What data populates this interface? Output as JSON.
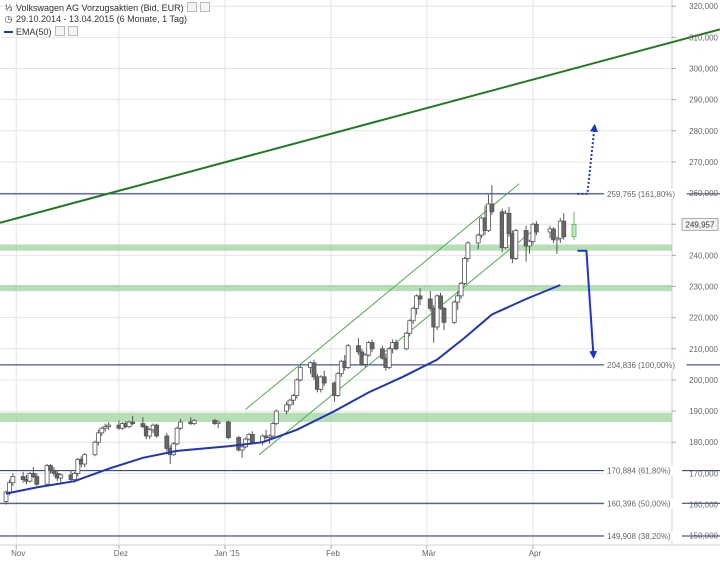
{
  "header": {
    "title": "Volkswagen AG Vorzugsaktien (Bid, EUR)",
    "range": "29.10.2014 - 13.04.2015 (6 Monate, 1 Tag)",
    "ema_label": "EMA(50)"
  },
  "colors": {
    "up": "#ffffff",
    "down": "#666666",
    "wick": "#555555",
    "ema": "#2233bb",
    "trend": "#1f7a1f",
    "channel": "#55aa55",
    "zone": "#9ed49e",
    "fib": "#1f2f7a",
    "arrow": "#2233cc",
    "grid": "#e4e4e4",
    "axis_text": "#666666"
  },
  "chart_data": {
    "type": "candlestick",
    "y_range": [
      147000,
      322000
    ],
    "x_range": [
      "2014-10-29",
      "2015-04-13"
    ],
    "y_ticks": [
      150000,
      160000,
      170000,
      180000,
      190000,
      200000,
      210000,
      220000,
      230000,
      240000,
      250000,
      260000,
      270000,
      280000,
      290000,
      300000,
      310000,
      320000
    ],
    "y_tick_labels": [
      "150,000",
      "160,000",
      "170,000",
      "180,000",
      "190,000",
      "200,000",
      "210,000",
      "220,000",
      "230,000",
      "240,000",
      "250,000",
      "260,000",
      "270,000",
      "280,000",
      "290,000",
      "300,000",
      "310,000",
      "320,000"
    ],
    "x_ticks": [
      {
        "date": "2014-11-01",
        "label": "Nov"
      },
      {
        "date": "2014-12-01",
        "label": "Dez"
      },
      {
        "date": "2015-01-01",
        "label": "Jan '15"
      },
      {
        "date": "2015-02-01",
        "label": "Feb"
      },
      {
        "date": "2015-03-01",
        "label": "Mär"
      },
      {
        "date": "2015-04-01",
        "label": "Apr"
      }
    ],
    "last_price_label": "249,957",
    "last_price": 249957,
    "fib_levels": [
      {
        "value": 259765,
        "label": "259,765 (161,80%)"
      },
      {
        "value": 204836,
        "label": "204,836 (100,00%)"
      },
      {
        "value": 170884,
        "label": "170,884 (61,80%)"
      },
      {
        "value": 160396,
        "label": "160,396 (50,00%)"
      },
      {
        "value": 149908,
        "label": "149,908 (38,20%)"
      }
    ],
    "zones": [
      {
        "from": 186500,
        "to": 189500
      },
      {
        "from": 228500,
        "to": 230500
      },
      {
        "from": 241500,
        "to": 243500
      }
    ],
    "trendline": {
      "from": {
        "date": "2014-10-29",
        "value": 251000
      },
      "to": {
        "date": "2015-04-13",
        "value": 300000
      }
    },
    "channel": [
      {
        "from": {
          "date": "2015-01-07",
          "value": 190500
        },
        "to": {
          "date": "2015-03-28",
          "value": 263000
        }
      },
      {
        "from": {
          "date": "2015-01-11",
          "value": 176000
        },
        "to": {
          "date": "2015-04-01",
          "value": 248000
        }
      }
    ],
    "ema": [
      {
        "date": "2014-10-29",
        "value": 163500
      },
      {
        "date": "2014-11-07",
        "value": 165500
      },
      {
        "date": "2014-11-18",
        "value": 167500
      },
      {
        "date": "2014-11-28",
        "value": 171500
      },
      {
        "date": "2014-12-08",
        "value": 175000
      },
      {
        "date": "2014-12-18",
        "value": 177200
      },
      {
        "date": "2015-01-02",
        "value": 178700
      },
      {
        "date": "2015-01-12",
        "value": 180000
      },
      {
        "date": "2015-01-22",
        "value": 184000
      },
      {
        "date": "2015-02-02",
        "value": 190000
      },
      {
        "date": "2015-02-12",
        "value": 196000
      },
      {
        "date": "2015-02-22",
        "value": 201000
      },
      {
        "date": "2015-03-04",
        "value": 206500
      },
      {
        "date": "2015-03-12",
        "value": 213500
      },
      {
        "date": "2015-03-20",
        "value": 221000
      },
      {
        "date": "2015-03-30",
        "value": 226000
      },
      {
        "date": "2015-04-09",
        "value": 230500
      }
    ],
    "candles": [
      [
        "2014-10-29",
        161000,
        164500,
        160000,
        164000
      ],
      [
        "2014-10-30",
        164000,
        168000,
        163000,
        167000
      ],
      [
        "2014-10-31",
        167000,
        170000,
        166000,
        169000
      ],
      [
        "2014-11-03",
        169000,
        170500,
        167000,
        168000
      ],
      [
        "2014-11-04",
        168000,
        169500,
        166500,
        167500
      ],
      [
        "2014-11-05",
        167500,
        170500,
        167000,
        170000
      ],
      [
        "2014-11-06",
        170000,
        172000,
        168500,
        169000
      ],
      [
        "2014-11-07",
        169000,
        170000,
        166000,
        166500
      ],
      [
        "2014-11-10",
        166500,
        173000,
        166000,
        172500
      ],
      [
        "2014-11-11",
        172500,
        173000,
        170000,
        171000
      ],
      [
        "2014-11-12",
        171000,
        172000,
        169000,
        170000
      ],
      [
        "2014-11-13",
        170000,
        171000,
        167500,
        168500
      ],
      [
        "2014-11-14",
        168500,
        170000,
        167000,
        169500
      ],
      [
        "2014-11-17",
        169500,
        171000,
        167500,
        168000
      ],
      [
        "2014-11-18",
        168000,
        170500,
        167000,
        170000
      ],
      [
        "2014-11-19",
        170000,
        175000,
        169000,
        174500
      ],
      [
        "2014-11-20",
        174500,
        175500,
        172000,
        173000
      ],
      [
        "2014-11-21",
        173000,
        176500,
        172000,
        176000
      ],
      [
        "2014-11-24",
        176000,
        180500,
        175500,
        180000
      ],
      [
        "2014-11-25",
        180000,
        184000,
        179000,
        183000
      ],
      [
        "2014-11-26",
        183000,
        185000,
        182000,
        184500
      ],
      [
        "2014-11-27",
        184500,
        186000,
        183500,
        185000
      ],
      [
        "2014-11-28",
        185000,
        186500,
        184000,
        185500
      ],
      [
        "2014-12-01",
        185500,
        187000,
        184000,
        184500
      ],
      [
        "2014-12-02",
        184500,
        186500,
        184000,
        186000
      ],
      [
        "2014-12-03",
        186000,
        186800,
        184500,
        185000
      ],
      [
        "2014-12-04",
        185000,
        187000,
        184500,
        186500
      ],
      [
        "2014-12-05",
        186500,
        188500,
        185500,
        186000
      ],
      [
        "2014-12-08",
        186000,
        188000,
        184500,
        185000
      ],
      [
        "2014-12-09",
        185000,
        185500,
        181000,
        182000
      ],
      [
        "2014-12-10",
        182000,
        184500,
        181000,
        184000
      ],
      [
        "2014-12-11",
        184000,
        186000,
        183000,
        185500
      ],
      [
        "2014-12-12",
        185500,
        186000,
        181500,
        182000
      ],
      [
        "2014-12-15",
        182000,
        183000,
        177000,
        178000
      ],
      [
        "2014-12-16",
        178000,
        179000,
        173000,
        176000
      ],
      [
        "2014-12-17",
        176000,
        180000,
        175500,
        179500
      ],
      [
        "2014-12-18",
        179500,
        185000,
        179000,
        184500
      ],
      [
        "2014-12-19",
        184500,
        187500,
        184000,
        186500
      ],
      [
        "2014-12-22",
        186500,
        188000,
        185500,
        186000
      ],
      [
        "2014-12-23",
        186000,
        187500,
        185500,
        187000
      ],
      [
        "2014-12-29",
        187000,
        187500,
        185500,
        186000
      ],
      [
        "2014-12-30",
        186000,
        187000,
        184500,
        186500
      ],
      [
        "2015-01-02",
        186500,
        187000,
        181000,
        181500
      ],
      [
        "2015-01-05",
        181500,
        182000,
        177000,
        177500
      ],
      [
        "2015-01-06",
        177500,
        179500,
        175000,
        178500
      ],
      [
        "2015-01-07",
        178500,
        181500,
        178000,
        181000
      ],
      [
        "2015-01-08",
        181000,
        183000,
        180500,
        182500
      ],
      [
        "2015-01-09",
        182500,
        183500,
        179500,
        180000
      ],
      [
        "2015-01-12",
        180000,
        182500,
        179000,
        182000
      ],
      [
        "2015-01-13",
        182000,
        184000,
        181000,
        181500
      ],
      [
        "2015-01-14",
        181500,
        182500,
        179500,
        182000
      ],
      [
        "2015-01-15",
        182000,
        186500,
        181500,
        186000
      ],
      [
        "2015-01-16",
        186000,
        190500,
        185500,
        190000
      ],
      [
        "2015-01-19",
        190000,
        193000,
        189000,
        192000
      ],
      [
        "2015-01-20",
        192000,
        194000,
        190500,
        193500
      ],
      [
        "2015-01-21",
        193500,
        195500,
        192000,
        195000
      ],
      [
        "2015-01-22",
        195000,
        200500,
        194000,
        200000
      ],
      [
        "2015-01-23",
        200000,
        205000,
        199500,
        204000
      ],
      [
        "2015-01-26",
        204000,
        206000,
        202000,
        205500
      ],
      [
        "2015-01-27",
        205500,
        206500,
        200000,
        201000
      ],
      [
        "2015-01-28",
        201000,
        202000,
        196000,
        197000
      ],
      [
        "2015-01-29",
        197000,
        201500,
        196000,
        201000
      ],
      [
        "2015-01-30",
        201000,
        203000,
        198000,
        199000
      ],
      [
        "2015-02-02",
        199000,
        199500,
        193000,
        195000
      ],
      [
        "2015-02-03",
        195000,
        202500,
        194500,
        202000
      ],
      [
        "2015-02-04",
        202000,
        206500,
        201000,
        206000
      ],
      [
        "2015-02-05",
        206000,
        208000,
        203000,
        204000
      ],
      [
        "2015-02-06",
        204000,
        211500,
        203500,
        211000
      ],
      [
        "2015-02-09",
        211000,
        213500,
        208000,
        209000
      ],
      [
        "2015-02-10",
        209000,
        210000,
        204500,
        205000
      ],
      [
        "2015-02-11",
        205000,
        208500,
        204000,
        208000
      ],
      [
        "2015-02-12",
        208000,
        212500,
        207500,
        212000
      ],
      [
        "2015-02-13",
        212000,
        213000,
        209000,
        210000
      ],
      [
        "2015-02-16",
        210000,
        211000,
        206500,
        207000
      ],
      [
        "2015-02-17",
        207000,
        208500,
        203000,
        204000
      ],
      [
        "2015-02-18",
        204000,
        210500,
        203500,
        210000
      ],
      [
        "2015-02-19",
        210000,
        213000,
        208500,
        212000
      ],
      [
        "2015-02-20",
        212000,
        213000,
        209500,
        210000
      ],
      [
        "2015-02-23",
        210000,
        215500,
        209500,
        215000
      ],
      [
        "2015-02-24",
        215000,
        219500,
        214000,
        219000
      ],
      [
        "2015-02-25",
        219000,
        223500,
        218000,
        223000
      ],
      [
        "2015-02-26",
        223000,
        227500,
        221000,
        227000
      ],
      [
        "2015-02-27",
        227000,
        229500,
        224000,
        226000
      ],
      [
        "2015-03-02",
        226000,
        228500,
        222000,
        223000
      ],
      [
        "2015-03-03",
        223000,
        224000,
        212000,
        217000
      ],
      [
        "2015-03-04",
        217000,
        227500,
        216000,
        227000
      ],
      [
        "2015-03-05",
        227000,
        228000,
        222500,
        223000
      ],
      [
        "2015-03-06",
        223000,
        223500,
        216000,
        218500
      ],
      [
        "2015-03-09",
        218500,
        225500,
        218000,
        225000
      ],
      [
        "2015-03-10",
        225000,
        228500,
        222500,
        227000
      ],
      [
        "2015-03-11",
        227000,
        231500,
        226000,
        231000
      ],
      [
        "2015-03-12",
        231000,
        239500,
        230500,
        239000
      ],
      [
        "2015-03-13",
        239000,
        244500,
        238000,
        244000
      ],
      [
        "2015-03-16",
        244000,
        247000,
        242000,
        246500
      ],
      [
        "2015-03-17",
        246500,
        252500,
        245500,
        252000
      ],
      [
        "2015-03-18",
        252000,
        256000,
        246500,
        248000
      ],
      [
        "2015-03-19",
        248000,
        259500,
        247500,
        256500
      ],
      [
        "2015-03-20",
        256500,
        262500,
        253000,
        254000
      ],
      [
        "2015-03-23",
        254000,
        255000,
        241000,
        242500
      ],
      [
        "2015-03-24",
        242500,
        254500,
        242000,
        253500
      ],
      [
        "2015-03-25",
        253500,
        255500,
        246000,
        247000
      ],
      [
        "2015-03-26",
        247000,
        248000,
        237500,
        239000
      ],
      [
        "2015-03-27",
        239000,
        248500,
        238500,
        248000
      ],
      [
        "2015-03-30",
        248000,
        249500,
        238000,
        243000
      ],
      [
        "2015-03-31",
        243000,
        245000,
        240500,
        244500
      ],
      [
        "2015-04-01",
        244500,
        250500,
        243500,
        250000
      ],
      [
        "2015-04-02",
        250000,
        251000,
        246500,
        247500
      ],
      [
        "2015-04-06",
        247500,
        249500,
        245500,
        248500
      ],
      [
        "2015-04-07",
        248500,
        249000,
        244000,
        245000
      ],
      [
        "2015-04-08",
        245000,
        246000,
        240500,
        245500
      ],
      [
        "2015-04-09",
        245500,
        252000,
        244000,
        251000
      ],
      [
        "2015-04-10",
        251000,
        253500,
        245000,
        246000
      ],
      [
        "2015-04-13",
        246000,
        254000,
        245000,
        249957
      ]
    ]
  }
}
